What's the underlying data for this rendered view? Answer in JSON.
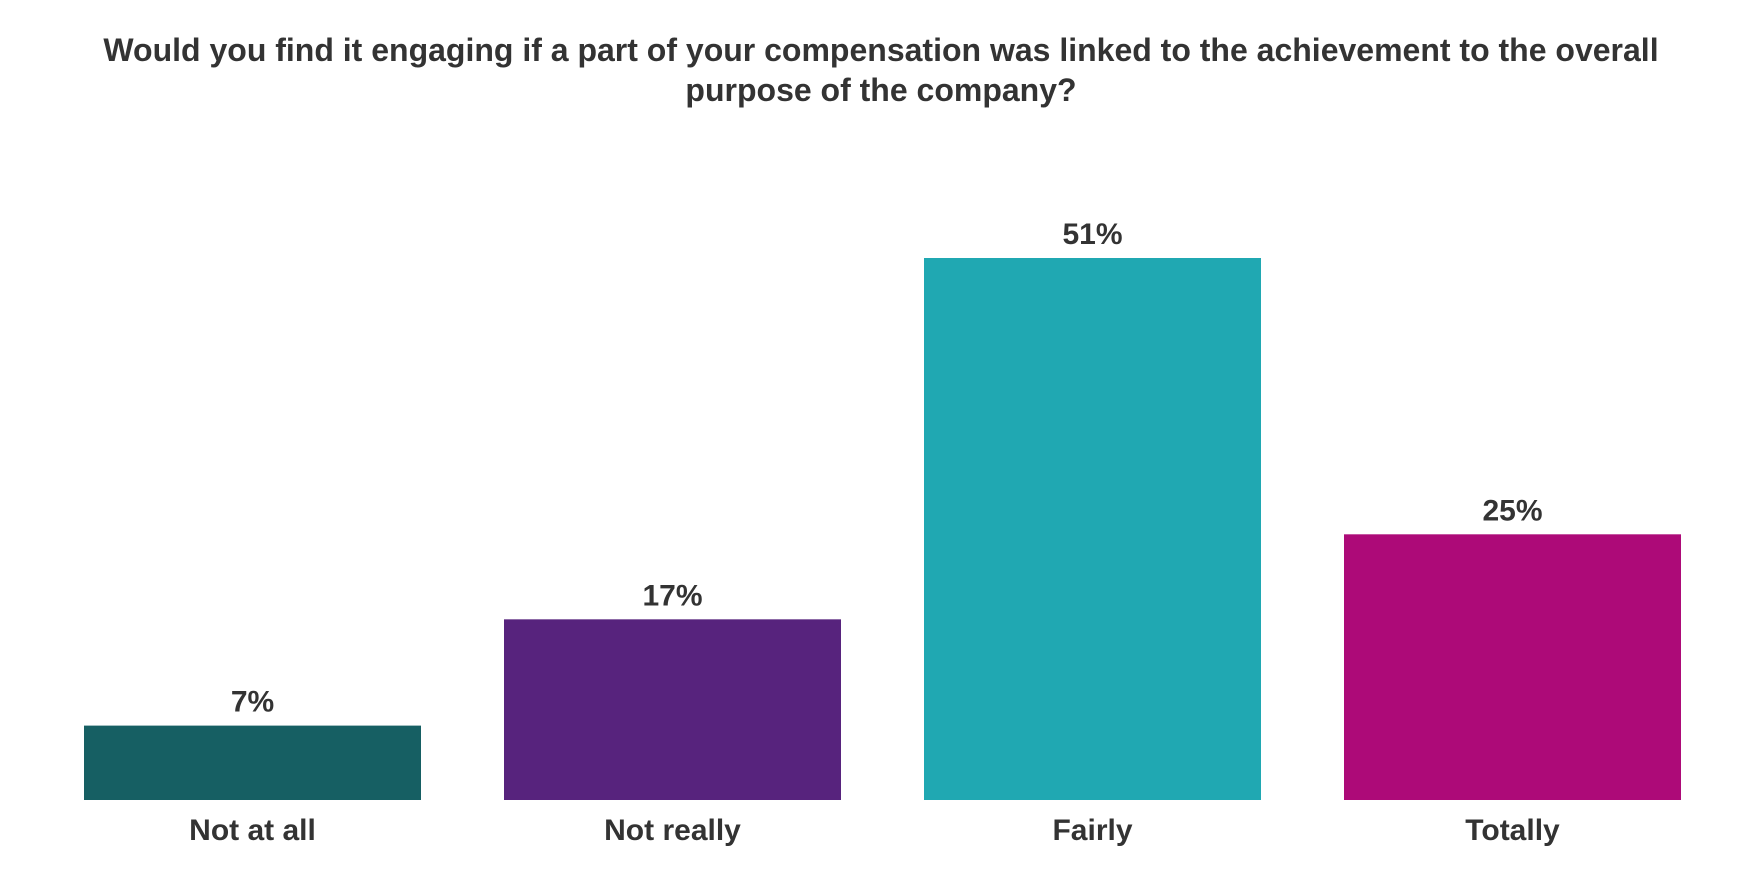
{
  "chart_data": {
    "type": "bar",
    "title": "Would you find it engaging if a part of your compensation was linked to the achievement to the overall purpose of the company?",
    "categories": [
      "Not at all",
      "Not really",
      "Fairly",
      "Totally"
    ],
    "values": [
      7,
      17,
      51,
      25
    ],
    "value_labels": [
      "7%",
      "17%",
      "51%",
      "25%"
    ],
    "colors": [
      "#165f63",
      "#57237d",
      "#20a8b2",
      "#ad0a78"
    ],
    "ylim": [
      0,
      51
    ],
    "grid": false,
    "legend": "none"
  }
}
